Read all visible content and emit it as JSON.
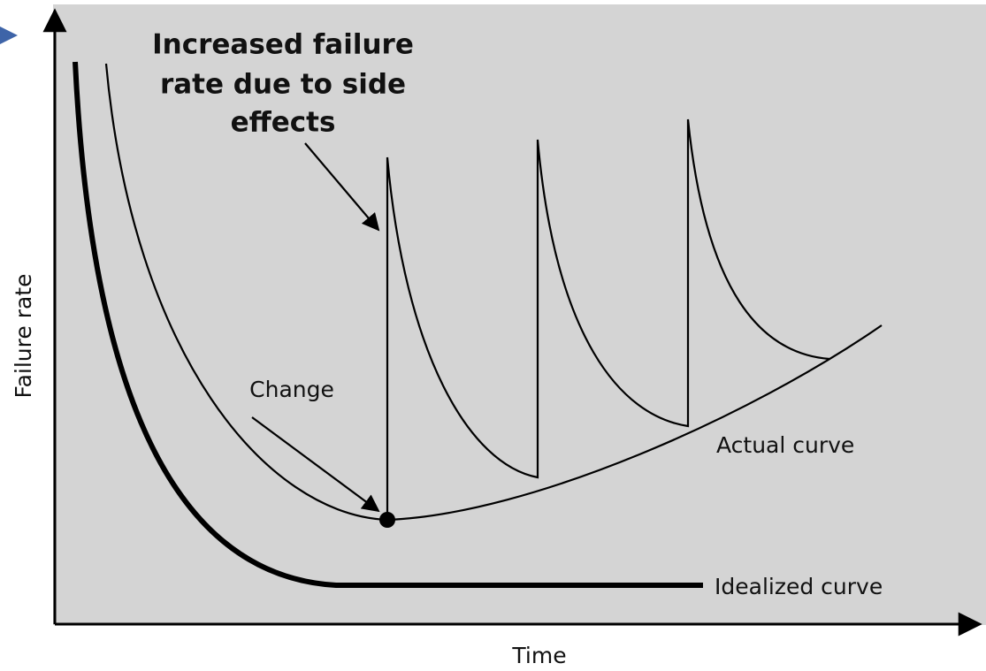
{
  "annotation": {
    "lines": [
      "Increased failure",
      "rate due to side",
      "effects"
    ]
  },
  "change_label": "Change",
  "actual_label": "Actual curve",
  "idealized_label": "Idealized curve",
  "y_axis_label": "Failure rate",
  "x_axis_label": "Time"
}
